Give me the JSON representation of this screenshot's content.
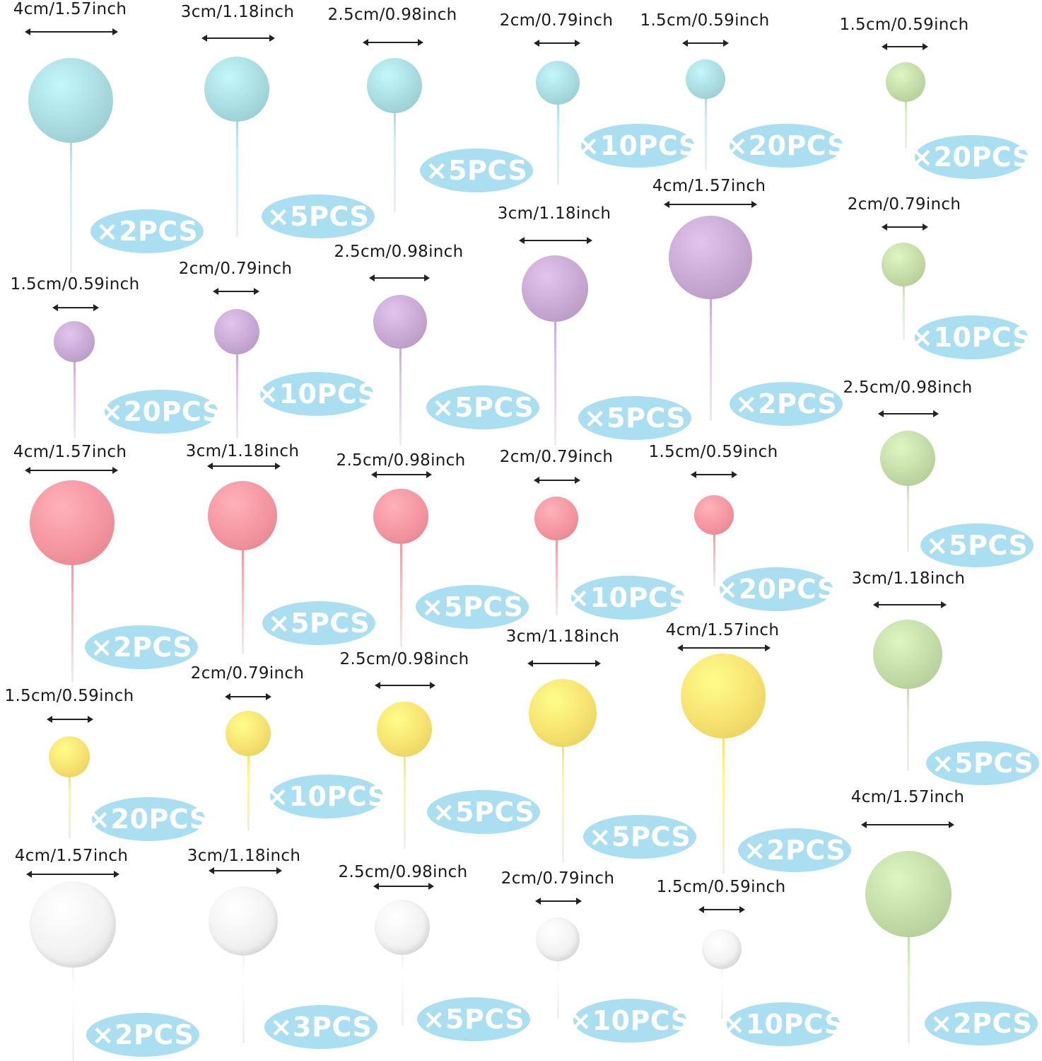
{
  "colors": {
    "blue": "#a8dbe0",
    "purple": "#c6a8d2",
    "pink": "#f4959f",
    "yellow": "#f7e16e",
    "white": "#f2f2f2",
    "green": "#c2dba6",
    "badge": "#a9dff0"
  },
  "items": [
    {
      "size": "4cm/1.57inch",
      "qty": "×2PCS",
      "color": "blue"
    },
    {
      "size": "3cm/1.18inch",
      "qty": "×5PCS",
      "color": "blue"
    },
    {
      "size": "2.5cm/0.98inch",
      "qty": "×5PCS",
      "color": "blue"
    },
    {
      "size": "2cm/0.79inch",
      "qty": "×10PCS",
      "color": "blue"
    },
    {
      "size": "1.5cm/0.59inch",
      "qty": "×20PCS",
      "color": "blue"
    },
    {
      "size": "1.5cm/0.59inch",
      "qty": "×20PCS",
      "color": "green"
    },
    {
      "size": "1.5cm/0.59inch",
      "qty": "×20PCS",
      "color": "purple"
    },
    {
      "size": "2cm/0.79inch",
      "qty": "×10PCS",
      "color": "purple"
    },
    {
      "size": "2.5cm/0.98inch",
      "qty": "×5PCS",
      "color": "purple"
    },
    {
      "size": "3cm/1.18inch",
      "qty": "×5PCS",
      "color": "purple"
    },
    {
      "size": "4cm/1.57inch",
      "qty": "×2PCS",
      "color": "purple"
    },
    {
      "size": "2cm/0.79inch",
      "qty": "×10PCS",
      "color": "green"
    },
    {
      "size": "4cm/1.57inch",
      "qty": "×2PCS",
      "color": "pink"
    },
    {
      "size": "3cm/1.18inch",
      "qty": "×5PCS",
      "color": "pink"
    },
    {
      "size": "2.5cm/0.98inch",
      "qty": "×5PCS",
      "color": "pink"
    },
    {
      "size": "2cm/0.79inch",
      "qty": "×10PCS",
      "color": "pink"
    },
    {
      "size": "1.5cm/0.59inch",
      "qty": "×20PCS",
      "color": "pink"
    },
    {
      "size": "2.5cm/0.98inch",
      "qty": "×5PCS",
      "color": "green"
    },
    {
      "size": "1.5cm/0.59inch",
      "qty": "×20PCS",
      "color": "yellow"
    },
    {
      "size": "2cm/0.79inch",
      "qty": "×10PCS",
      "color": "yellow"
    },
    {
      "size": "2.5cm/0.98inch",
      "qty": "×5PCS",
      "color": "yellow"
    },
    {
      "size": "3cm/1.18inch",
      "qty": "×5PCS",
      "color": "yellow"
    },
    {
      "size": "4cm/1.57inch",
      "qty": "×2PCS",
      "color": "yellow"
    },
    {
      "size": "3cm/1.18inch",
      "qty": "×5PCS",
      "color": "green"
    },
    {
      "size": "4cm/1.57inch",
      "qty": "×2PCS",
      "color": "white"
    },
    {
      "size": "3cm/1.18inch",
      "qty": "×3PCS",
      "color": "white"
    },
    {
      "size": "2.5cm/0.98inch",
      "qty": "×5PCS",
      "color": "white"
    },
    {
      "size": "2cm/0.79inch",
      "qty": "×10PCS",
      "color": "white"
    },
    {
      "size": "1.5cm/0.59inch",
      "qty": "×10PCS",
      "color": "white"
    },
    {
      "size": "4cm/1.57inch",
      "qty": "×2PCS",
      "color": "green"
    }
  ]
}
